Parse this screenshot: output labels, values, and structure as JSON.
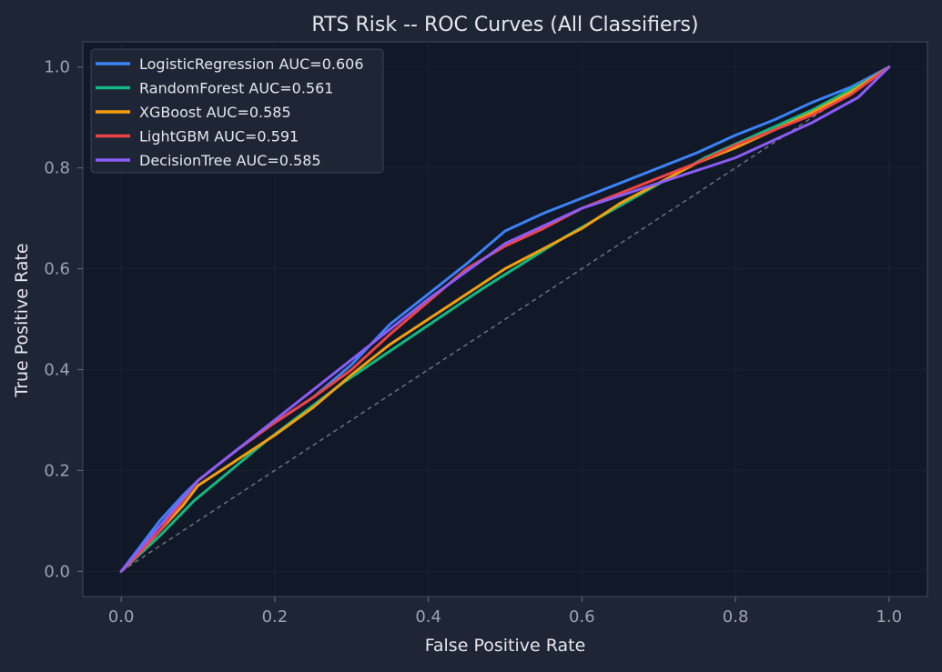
{
  "chart_data": {
    "type": "line",
    "title": "RTS Risk -- ROC Curves (All Classifiers)",
    "xlabel": "False Positive Rate",
    "ylabel": "True Positive Rate",
    "xlim": [
      -0.05,
      1.05
    ],
    "ylim": [
      -0.05,
      1.05
    ],
    "xticks": [
      "0.0",
      "0.2",
      "0.4",
      "0.6",
      "0.8",
      "1.0"
    ],
    "yticks": [
      "0.0",
      "0.2",
      "0.4",
      "0.6",
      "0.8",
      "1.0"
    ],
    "grid": true,
    "legend_position": "top-left",
    "reference_line": {
      "style": "dashed",
      "color": "#6b7280",
      "points": [
        [
          0,
          0
        ],
        [
          1,
          1
        ]
      ]
    },
    "series": [
      {
        "name": "LogisticRegression  AUC=0.606",
        "color": "#3b82f6",
        "points": [
          [
            0,
            0
          ],
          [
            0.02,
            0.04
          ],
          [
            0.05,
            0.1
          ],
          [
            0.08,
            0.15
          ],
          [
            0.1,
            0.18
          ],
          [
            0.15,
            0.24
          ],
          [
            0.2,
            0.295
          ],
          [
            0.25,
            0.345
          ],
          [
            0.3,
            0.41
          ],
          [
            0.35,
            0.49
          ],
          [
            0.4,
            0.55
          ],
          [
            0.45,
            0.61
          ],
          [
            0.5,
            0.675
          ],
          [
            0.55,
            0.71
          ],
          [
            0.6,
            0.74
          ],
          [
            0.65,
            0.77
          ],
          [
            0.7,
            0.8
          ],
          [
            0.75,
            0.83
          ],
          [
            0.8,
            0.865
          ],
          [
            0.85,
            0.895
          ],
          [
            0.9,
            0.93
          ],
          [
            0.95,
            0.96
          ],
          [
            1,
            1
          ]
        ]
      },
      {
        "name": "RandomForest  AUC=0.561",
        "color": "#10b981",
        "points": [
          [
            0,
            0
          ],
          [
            0.05,
            0.07
          ],
          [
            0.095,
            0.14
          ],
          [
            0.19,
            0.26
          ],
          [
            0.29,
            0.375
          ],
          [
            0.47,
            0.56
          ],
          [
            0.58,
            0.665
          ],
          [
            0.76,
            0.82
          ],
          [
            0.9,
            0.915
          ],
          [
            0.98,
            0.98
          ],
          [
            1,
            1
          ]
        ]
      },
      {
        "name": "XGBoost  AUC=0.585",
        "color": "#f59e0b",
        "points": [
          [
            0,
            0
          ],
          [
            0.02,
            0.03
          ],
          [
            0.05,
            0.08
          ],
          [
            0.08,
            0.13
          ],
          [
            0.1,
            0.17
          ],
          [
            0.15,
            0.22
          ],
          [
            0.2,
            0.27
          ],
          [
            0.25,
            0.325
          ],
          [
            0.3,
            0.39
          ],
          [
            0.35,
            0.45
          ],
          [
            0.4,
            0.5
          ],
          [
            0.45,
            0.55
          ],
          [
            0.5,
            0.6
          ],
          [
            0.55,
            0.64
          ],
          [
            0.6,
            0.68
          ],
          [
            0.65,
            0.73
          ],
          [
            0.7,
            0.77
          ],
          [
            0.75,
            0.81
          ],
          [
            0.8,
            0.84
          ],
          [
            0.85,
            0.875
          ],
          [
            0.9,
            0.91
          ],
          [
            0.95,
            0.95
          ],
          [
            1,
            1
          ]
        ]
      },
      {
        "name": "LightGBM  AUC=0.591",
        "color": "#ef4444",
        "points": [
          [
            0,
            0
          ],
          [
            0.02,
            0.03
          ],
          [
            0.05,
            0.08
          ],
          [
            0.08,
            0.14
          ],
          [
            0.1,
            0.18
          ],
          [
            0.15,
            0.24
          ],
          [
            0.2,
            0.295
          ],
          [
            0.25,
            0.345
          ],
          [
            0.3,
            0.4
          ],
          [
            0.35,
            0.47
          ],
          [
            0.4,
            0.535
          ],
          [
            0.45,
            0.6
          ],
          [
            0.5,
            0.645
          ],
          [
            0.55,
            0.68
          ],
          [
            0.6,
            0.72
          ],
          [
            0.65,
            0.75
          ],
          [
            0.7,
            0.78
          ],
          [
            0.75,
            0.81
          ],
          [
            0.8,
            0.845
          ],
          [
            0.85,
            0.875
          ],
          [
            0.9,
            0.905
          ],
          [
            0.95,
            0.945
          ],
          [
            1,
            1
          ]
        ]
      },
      {
        "name": "DecisionTree  AUC=0.585",
        "color": "#8b5cf6",
        "points": [
          [
            0,
            0
          ],
          [
            0.05,
            0.09
          ],
          [
            0.1,
            0.18
          ],
          [
            0.2,
            0.3
          ],
          [
            0.3,
            0.42
          ],
          [
            0.4,
            0.54
          ],
          [
            0.5,
            0.65
          ],
          [
            0.6,
            0.72
          ],
          [
            0.7,
            0.77
          ],
          [
            0.8,
            0.82
          ],
          [
            0.9,
            0.89
          ],
          [
            0.96,
            0.94
          ],
          [
            1,
            1
          ]
        ]
      }
    ]
  }
}
